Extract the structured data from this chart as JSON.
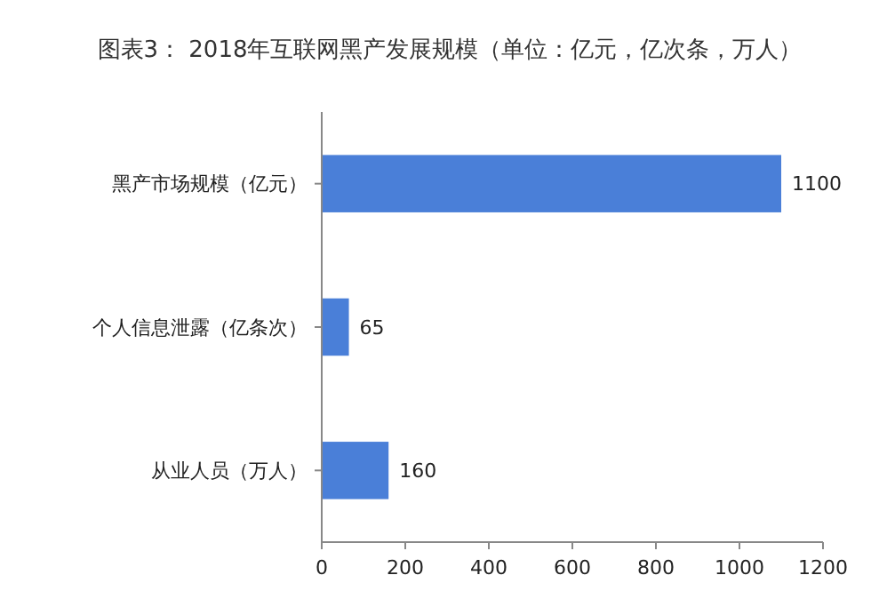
{
  "chart_data": {
    "type": "bar",
    "orientation": "horizontal",
    "title": "图表3： 2018年互联网黑产发展规模（单位：亿元，亿次条，万人）",
    "categories": [
      "黑产市场规模（亿元）",
      "个人信息泄露（亿条次）",
      "从业人员（万人）"
    ],
    "values": [
      1100,
      65,
      160
    ],
    "color": "#4a7fd8",
    "data_labels": true,
    "xlim": [
      0,
      1200
    ],
    "xticks": [
      0,
      200,
      400,
      600,
      800,
      1000,
      1200
    ],
    "grid": false
  }
}
